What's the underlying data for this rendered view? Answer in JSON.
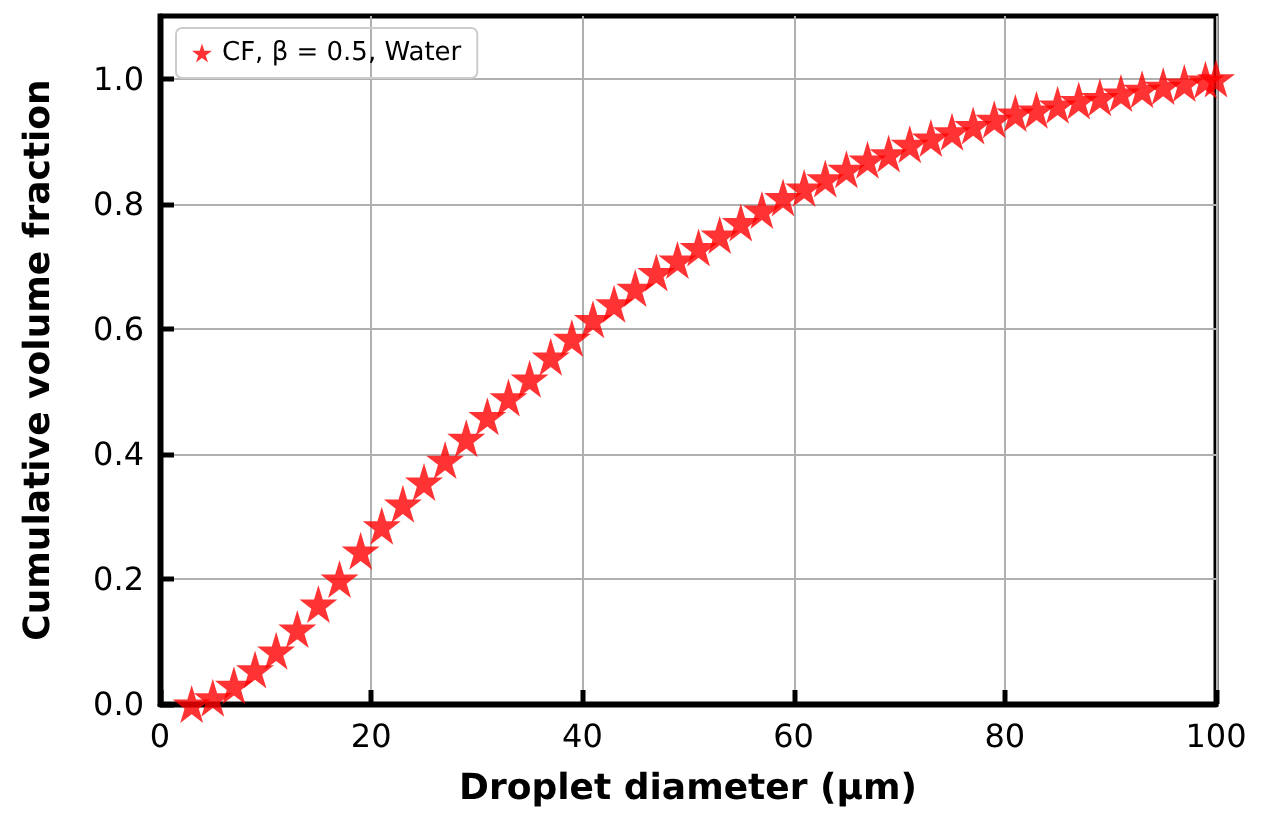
{
  "chart_data": {
    "type": "scatter",
    "xlabel": "Droplet diameter (μm)",
    "ylabel": "Cumulative volume fraction",
    "x": [
      3,
      5,
      7,
      9,
      11,
      13,
      15,
      17,
      19,
      21,
      23,
      25,
      27,
      29,
      31,
      33,
      35,
      37,
      39,
      41,
      43,
      45,
      47,
      49,
      51,
      53,
      55,
      57,
      59,
      61,
      63,
      65,
      67,
      69,
      71,
      73,
      75,
      77,
      79,
      81,
      83,
      85,
      87,
      89,
      91,
      93,
      95,
      97,
      99,
      100
    ],
    "series": [
      {
        "name": "CF, β = 0.5, Water",
        "color": "#ff0000",
        "values": [
          0.0,
          0.01,
          0.03,
          0.055,
          0.085,
          0.12,
          0.16,
          0.2,
          0.245,
          0.285,
          0.32,
          0.355,
          0.39,
          0.425,
          0.46,
          0.49,
          0.52,
          0.555,
          0.585,
          0.615,
          0.64,
          0.665,
          0.69,
          0.71,
          0.73,
          0.75,
          0.77,
          0.79,
          0.81,
          0.825,
          0.84,
          0.855,
          0.87,
          0.88,
          0.895,
          0.905,
          0.915,
          0.925,
          0.935,
          0.945,
          0.95,
          0.958,
          0.965,
          0.97,
          0.977,
          0.983,
          0.988,
          0.993,
          0.998,
          1.0
        ]
      }
    ],
    "xlim": [
      0,
      100
    ],
    "xticks": [
      0,
      20,
      40,
      60,
      80,
      100
    ],
    "ylim": [
      0,
      1.1
    ],
    "yticks": [
      {
        "value": 0,
        "label": "0.0"
      },
      {
        "value": 0.2,
        "label": "0.2"
      },
      {
        "value": 0.4,
        "label": "0.4"
      },
      {
        "value": 0.6,
        "label": "0.6"
      },
      {
        "value": 0.8,
        "label": "0.8"
      },
      {
        "value": 1.0,
        "label": "1.0"
      }
    ],
    "grid": true,
    "legend": "top left",
    "marker": "star"
  }
}
